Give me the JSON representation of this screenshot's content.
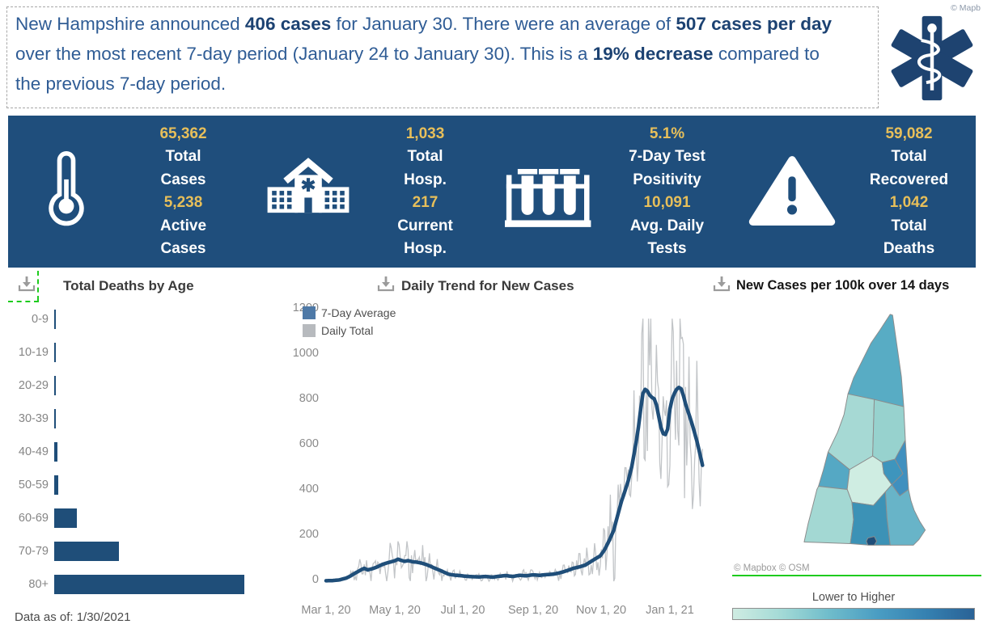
{
  "colors": {
    "navy": "#1F4E7C",
    "gold": "#E7BF5A",
    "highlight_green": "#1ECB1E",
    "headline_blue": "#2F5C95",
    "headline_bold_blue": "#1C4272",
    "bar_navy": "#1F4E79",
    "daily_gray": "#C2C5C8",
    "legend_blue": "#4E79A7"
  },
  "headline": {
    "segments": [
      {
        "text": "New Hampshire announced "
      },
      {
        "text": "406 cases",
        "bold": true
      },
      {
        "text": " for January 30. There were an average of "
      },
      {
        "text": "507 cases per day",
        "bold": true
      },
      {
        "text": " over the most recent 7-day period (January 24 to January 30). This is a "
      },
      {
        "text": "19% decrease",
        "bold": true
      },
      {
        "text": " compared to the previous 7-day period."
      }
    ],
    "corner_credit": "© Mapb"
  },
  "stats_bar": {
    "groups": [
      {
        "icon": "thermometer-icon",
        "stat1_value": "65,362",
        "stat1_label": "Total\nCases",
        "stat2_value": "5,238",
        "stat2_label": "Active\nCases"
      },
      {
        "icon": "hospital-icon",
        "stat1_value": "1,033",
        "stat1_label": "Total\nHosp.",
        "stat2_value": "217",
        "stat2_label": "Current\nHosp."
      },
      {
        "icon": "test-tubes-icon",
        "stat1_value": "5.1%",
        "stat1_label": "7-Day Test\nPositivity",
        "stat2_value": "10,091",
        "stat2_label": "Avg. Daily\nTests"
      },
      {
        "icon": "warning-triangle-icon",
        "stat1_value": "59,082",
        "stat1_label": "Total\nRecovered",
        "stat2_value": "1,042",
        "stat2_label": "Total\nDeaths"
      }
    ]
  },
  "panels": {
    "deaths": {
      "title": "Total Deaths by Age",
      "footnote": "Data as of: 1/30/2021"
    },
    "trend": {
      "title": "Daily Trend for New Cases"
    },
    "map": {
      "title": "New Cases per 100k over 14 days",
      "attribution": "© Mapbox © OSM",
      "legend_label": "Lower to Higher"
    }
  },
  "chart_data": [
    {
      "type": "bar",
      "title": "Total Deaths by Age",
      "orientation": "horizontal",
      "categories": [
        "0-9",
        "10-19",
        "20-29",
        "30-39",
        "40-49",
        "50-59",
        "60-69",
        "70-79",
        "80+"
      ],
      "values": [
        1,
        2,
        3,
        4,
        12,
        15,
        82,
        235,
        688
      ],
      "value_note": "values estimated from bar lengths; sum matches 1,042 total deaths",
      "max_value_for_scale": 688,
      "bar_color": "#1F4E79",
      "grid": false
    },
    {
      "type": "line",
      "title": "Daily Trend for New Cases",
      "x_axis": {
        "tick_labels": [
          "Mar 1, 20",
          "May 1, 20",
          "Jul 1, 20",
          "Sep 1, 20",
          "Nov 1, 20",
          "Jan 1, 21"
        ],
        "tick_days": [
          0,
          61,
          122,
          184,
          245,
          306
        ],
        "range_days": [
          0,
          335
        ]
      },
      "y_axis": {
        "ticks": [
          0,
          200,
          400,
          600,
          800,
          1000,
          1200
        ],
        "range": [
          0,
          1200
        ]
      },
      "legend": [
        {
          "label": "7-Day Average",
          "color": "#4E79A7"
        },
        {
          "label": "Daily Total",
          "color": "#B7BABE"
        }
      ],
      "grid": false,
      "series": [
        {
          "name": "7-Day Average",
          "color": "#1F4E79",
          "points_day_value": [
            [
              0,
              2
            ],
            [
              6,
              3
            ],
            [
              12,
              6
            ],
            [
              18,
              14
            ],
            [
              22,
              24
            ],
            [
              26,
              36
            ],
            [
              31,
              50
            ],
            [
              34,
              57
            ],
            [
              37,
              50
            ],
            [
              41,
              55
            ],
            [
              45,
              62
            ],
            [
              50,
              74
            ],
            [
              55,
              82
            ],
            [
              61,
              90
            ],
            [
              64,
              97
            ],
            [
              67,
              92
            ],
            [
              70,
              88
            ],
            [
              73,
              91
            ],
            [
              77,
              86
            ],
            [
              81,
              84
            ],
            [
              85,
              80
            ],
            [
              89,
              74
            ],
            [
              93,
              66
            ],
            [
              97,
              57
            ],
            [
              101,
              49
            ],
            [
              105,
              40
            ],
            [
              109,
              31
            ],
            [
              114,
              27
            ],
            [
              119,
              25
            ],
            [
              124,
              22
            ],
            [
              130,
              20
            ],
            [
              136,
              19
            ],
            [
              142,
              21
            ],
            [
              148,
              18
            ],
            [
              154,
              22
            ],
            [
              160,
              25
            ],
            [
              166,
              21
            ],
            [
              172,
              26
            ],
            [
              178,
              24
            ],
            [
              184,
              28
            ],
            [
              190,
              26
            ],
            [
              196,
              29
            ],
            [
              202,
              31
            ],
            [
              208,
              37
            ],
            [
              214,
              46
            ],
            [
              220,
              57
            ],
            [
              226,
              64
            ],
            [
              231,
              72
            ],
            [
              236,
              88
            ],
            [
              240,
              100
            ],
            [
              244,
              112
            ],
            [
              248,
              140
            ],
            [
              252,
              180
            ],
            [
              256,
              225
            ],
            [
              260,
              300
            ],
            [
              263,
              355
            ],
            [
              266,
              398
            ],
            [
              269,
              445
            ],
            [
              272,
              505
            ],
            [
              274,
              560
            ],
            [
              276,
              615
            ],
            [
              278,
              680
            ],
            [
              280,
              760
            ],
            [
              282,
              830
            ],
            [
              284,
              848
            ],
            [
              286,
              840
            ],
            [
              288,
              822
            ],
            [
              290,
              812
            ],
            [
              292,
              806
            ],
            [
              294,
              780
            ],
            [
              296,
              730
            ],
            [
              298,
              680
            ],
            [
              300,
              652
            ],
            [
              302,
              648
            ],
            [
              304,
              672
            ],
            [
              306,
              760
            ],
            [
              308,
              805
            ],
            [
              310,
              830
            ],
            [
              312,
              848
            ],
            [
              314,
              856
            ],
            [
              316,
              850
            ],
            [
              318,
              820
            ],
            [
              320,
              782
            ],
            [
              322,
              752
            ],
            [
              324,
              722
            ],
            [
              326,
              690
            ],
            [
              328,
              655
            ],
            [
              330,
              620
            ],
            [
              332,
              578
            ],
            [
              334,
              535
            ],
            [
              335,
              512
            ]
          ]
        },
        {
          "name": "Daily Total",
          "color": "#C2C5C8",
          "derivation": "approximated as 7-day average plus daily reporting noise",
          "noise_seed": 913,
          "noise_amp_high": 0.45,
          "noise_amp_low": 0.85,
          "clamp_max": 1160
        }
      ]
    },
    {
      "type": "choropleth",
      "title": "New Cases per 100k over 14 days",
      "legend_label": "Lower to Higher",
      "attribution": "© Mapbox © OSM",
      "gradient_stops": [
        "#CFECE2",
        "#A3DAD6",
        "#6FBCCB",
        "#4A9DC3",
        "#3581B1",
        "#2A6296"
      ],
      "regions": [
        {
          "id": "region-1",
          "fill": "#58ACC4",
          "relative_intensity": "mid-high"
        },
        {
          "id": "region-2",
          "fill": "#A6D9D4",
          "relative_intensity": "low"
        },
        {
          "id": "region-3",
          "fill": "#97D2CE",
          "relative_intensity": "low"
        },
        {
          "id": "region-4",
          "fill": "#55A8C4",
          "relative_intensity": "mid"
        },
        {
          "id": "region-5",
          "fill": "#CFEDE2",
          "relative_intensity": "lowest"
        },
        {
          "id": "region-6",
          "fill": "#3E95BD",
          "relative_intensity": "high"
        },
        {
          "id": "region-7",
          "fill": "#4090BF",
          "relative_intensity": "high"
        },
        {
          "id": "region-8",
          "fill": "#A3D8D3",
          "relative_intensity": "low"
        },
        {
          "id": "region-9",
          "fill": "#3C92B6",
          "relative_intensity": "high"
        },
        {
          "id": "region-10",
          "fill": "#68B4C8",
          "relative_intensity": "mid"
        },
        {
          "id": "region-11",
          "fill": "#1F4E79",
          "relative_intensity": "highest"
        }
      ]
    }
  ]
}
